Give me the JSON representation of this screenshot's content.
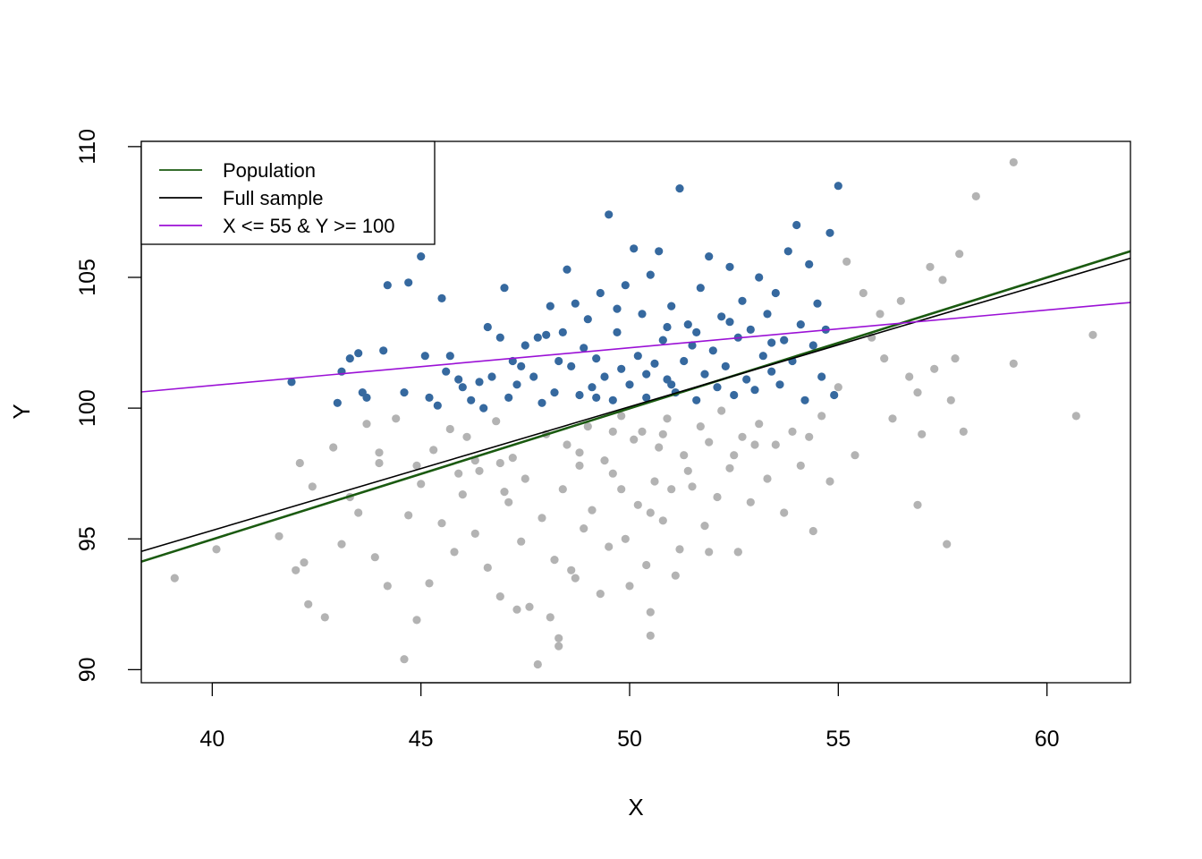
{
  "chart_data": {
    "type": "scatter",
    "title": "",
    "xlabel": "X",
    "ylabel": "Y",
    "xlim": [
      38.3,
      62.0
    ],
    "ylim": [
      89.5,
      110.2
    ],
    "x_ticks": [
      40,
      45,
      50,
      55,
      60
    ],
    "y_ticks": [
      90,
      95,
      100,
      105,
      110
    ],
    "x_tick_labels": [
      "40",
      "45",
      "50",
      "55",
      "60"
    ],
    "y_tick_labels": [
      "90",
      "95",
      "100",
      "105",
      "110"
    ],
    "grid": false,
    "legend_position": "top-left",
    "colors": {
      "selected_points": "#36699F",
      "other_points": "#B3B3B3",
      "population": "#1A5A10",
      "full_sample": "#000000",
      "subset": "#9B11D6"
    },
    "series": [
      {
        "name": "",
        "kind": "points",
        "color": "#36699F",
        "points": [
          [
            41.9,
            101.0
          ],
          [
            43.0,
            100.2
          ],
          [
            43.1,
            101.4
          ],
          [
            43.3,
            101.9
          ],
          [
            43.5,
            102.1
          ],
          [
            43.6,
            100.6
          ],
          [
            43.7,
            100.4
          ],
          [
            44.1,
            102.2
          ],
          [
            44.2,
            104.7
          ],
          [
            44.6,
            100.6
          ],
          [
            44.7,
            104.8
          ],
          [
            45.0,
            105.8
          ],
          [
            45.1,
            102.0
          ],
          [
            45.2,
            100.4
          ],
          [
            45.4,
            100.1
          ],
          [
            45.5,
            104.2
          ],
          [
            45.6,
            101.4
          ],
          [
            45.7,
            102.0
          ],
          [
            45.9,
            101.1
          ],
          [
            46.0,
            100.8
          ],
          [
            46.2,
            100.3
          ],
          [
            46.4,
            101.0
          ],
          [
            46.5,
            100.0
          ],
          [
            46.7,
            101.2
          ],
          [
            46.9,
            102.7
          ],
          [
            47.0,
            104.6
          ],
          [
            47.1,
            100.4
          ],
          [
            47.3,
            100.9
          ],
          [
            47.4,
            101.6
          ],
          [
            47.5,
            102.4
          ],
          [
            47.7,
            101.2
          ],
          [
            47.8,
            102.7
          ],
          [
            47.9,
            100.2
          ],
          [
            48.1,
            103.9
          ],
          [
            48.2,
            100.6
          ],
          [
            48.3,
            101.8
          ],
          [
            48.4,
            102.9
          ],
          [
            48.5,
            105.3
          ],
          [
            48.6,
            101.6
          ],
          [
            48.7,
            104.0
          ],
          [
            48.8,
            100.5
          ],
          [
            48.9,
            102.3
          ],
          [
            49.0,
            103.4
          ],
          [
            49.1,
            100.8
          ],
          [
            49.2,
            101.9
          ],
          [
            49.3,
            104.4
          ],
          [
            49.4,
            101.2
          ],
          [
            49.5,
            107.4
          ],
          [
            49.6,
            100.3
          ],
          [
            49.7,
            102.9
          ],
          [
            49.8,
            101.5
          ],
          [
            49.9,
            104.7
          ],
          [
            50.0,
            100.9
          ],
          [
            50.1,
            106.1
          ],
          [
            50.2,
            102.0
          ],
          [
            50.3,
            103.6
          ],
          [
            50.4,
            100.4
          ],
          [
            50.5,
            105.1
          ],
          [
            50.6,
            101.7
          ],
          [
            50.7,
            106.0
          ],
          [
            50.8,
            102.6
          ],
          [
            50.9,
            101.1
          ],
          [
            51.0,
            103.9
          ],
          [
            51.1,
            100.6
          ],
          [
            51.2,
            108.4
          ],
          [
            51.3,
            101.8
          ],
          [
            51.4,
            103.2
          ],
          [
            51.5,
            102.4
          ],
          [
            51.6,
            100.3
          ],
          [
            51.7,
            104.6
          ],
          [
            51.8,
            101.3
          ],
          [
            51.9,
            105.8
          ],
          [
            52.0,
            102.2
          ],
          [
            52.1,
            100.8
          ],
          [
            52.2,
            103.5
          ],
          [
            52.3,
            101.6
          ],
          [
            52.4,
            105.4
          ],
          [
            52.5,
            100.5
          ],
          [
            52.6,
            102.7
          ],
          [
            52.7,
            104.1
          ],
          [
            52.8,
            101.1
          ],
          [
            52.9,
            103.0
          ],
          [
            53.0,
            100.7
          ],
          [
            53.1,
            105.0
          ],
          [
            53.2,
            102.0
          ],
          [
            53.3,
            103.6
          ],
          [
            53.4,
            101.4
          ],
          [
            53.5,
            104.4
          ],
          [
            53.6,
            100.9
          ],
          [
            53.7,
            102.6
          ],
          [
            53.8,
            106.0
          ],
          [
            53.9,
            101.8
          ],
          [
            54.0,
            107.0
          ],
          [
            54.1,
            103.2
          ],
          [
            54.2,
            100.3
          ],
          [
            54.3,
            105.5
          ],
          [
            54.4,
            102.4
          ],
          [
            54.5,
            104.0
          ],
          [
            54.6,
            101.2
          ],
          [
            54.7,
            103.0
          ],
          [
            54.8,
            106.7
          ],
          [
            54.9,
            100.5
          ],
          [
            55.0,
            108.5
          ],
          [
            48.0,
            102.8
          ],
          [
            49.7,
            103.8
          ],
          [
            50.9,
            103.1
          ],
          [
            51.6,
            102.9
          ],
          [
            52.4,
            103.3
          ],
          [
            53.4,
            102.5
          ],
          [
            50.4,
            101.3
          ],
          [
            51.0,
            100.9
          ],
          [
            49.2,
            100.4
          ],
          [
            47.2,
            101.8
          ],
          [
            46.6,
            103.1
          ]
        ]
      },
      {
        "name": "",
        "kind": "points",
        "color": "#B3B3B3",
        "points": [
          [
            39.1,
            93.5
          ],
          [
            40.1,
            94.6
          ],
          [
            41.6,
            95.1
          ],
          [
            42.0,
            93.8
          ],
          [
            42.1,
            97.9
          ],
          [
            42.2,
            94.1
          ],
          [
            42.3,
            92.5
          ],
          [
            42.4,
            97.0
          ],
          [
            42.7,
            92.0
          ],
          [
            42.9,
            98.5
          ],
          [
            43.1,
            94.8
          ],
          [
            43.3,
            96.6
          ],
          [
            43.5,
            96.0
          ],
          [
            43.7,
            99.4
          ],
          [
            43.9,
            94.3
          ],
          [
            44.0,
            97.9
          ],
          [
            44.2,
            93.2
          ],
          [
            44.4,
            99.6
          ],
          [
            44.6,
            90.4
          ],
          [
            44.7,
            95.9
          ],
          [
            44.9,
            91.9
          ],
          [
            45.0,
            97.1
          ],
          [
            45.2,
            93.3
          ],
          [
            45.3,
            98.4
          ],
          [
            45.5,
            95.6
          ],
          [
            45.7,
            99.2
          ],
          [
            45.8,
            94.5
          ],
          [
            46.0,
            96.7
          ],
          [
            46.1,
            98.9
          ],
          [
            46.3,
            95.2
          ],
          [
            46.4,
            97.6
          ],
          [
            46.6,
            93.9
          ],
          [
            46.8,
            99.5
          ],
          [
            46.9,
            92.8
          ],
          [
            47.1,
            96.4
          ],
          [
            47.2,
            98.1
          ],
          [
            47.4,
            94.9
          ],
          [
            47.5,
            97.3
          ],
          [
            47.6,
            92.4
          ],
          [
            47.8,
            90.2
          ],
          [
            47.9,
            95.8
          ],
          [
            48.0,
            99.0
          ],
          [
            48.1,
            92.0
          ],
          [
            48.2,
            94.2
          ],
          [
            48.3,
            90.9
          ],
          [
            48.4,
            96.9
          ],
          [
            48.5,
            98.6
          ],
          [
            48.7,
            93.5
          ],
          [
            48.8,
            97.8
          ],
          [
            48.9,
            95.4
          ],
          [
            49.0,
            99.3
          ],
          [
            49.1,
            96.1
          ],
          [
            49.3,
            92.9
          ],
          [
            49.4,
            98.0
          ],
          [
            49.5,
            94.7
          ],
          [
            49.6,
            97.5
          ],
          [
            49.8,
            99.7
          ],
          [
            49.9,
            95.0
          ],
          [
            50.0,
            93.2
          ],
          [
            50.1,
            98.8
          ],
          [
            50.2,
            96.3
          ],
          [
            50.3,
            99.1
          ],
          [
            50.4,
            94.0
          ],
          [
            50.5,
            92.2
          ],
          [
            50.6,
            97.2
          ],
          [
            50.7,
            98.5
          ],
          [
            50.8,
            95.7
          ],
          [
            50.9,
            99.6
          ],
          [
            51.0,
            96.9
          ],
          [
            51.2,
            94.6
          ],
          [
            51.3,
            98.2
          ],
          [
            51.5,
            97.0
          ],
          [
            51.7,
            99.3
          ],
          [
            51.8,
            95.5
          ],
          [
            51.9,
            98.7
          ],
          [
            52.1,
            96.6
          ],
          [
            52.2,
            99.9
          ],
          [
            52.4,
            97.7
          ],
          [
            52.6,
            94.5
          ],
          [
            52.7,
            98.9
          ],
          [
            52.9,
            96.4
          ],
          [
            53.1,
            99.4
          ],
          [
            53.3,
            97.3
          ],
          [
            53.5,
            98.6
          ],
          [
            53.7,
            96.0
          ],
          [
            53.9,
            99.1
          ],
          [
            54.1,
            97.8
          ],
          [
            54.3,
            98.9
          ],
          [
            54.4,
            95.3
          ],
          [
            54.6,
            99.7
          ],
          [
            54.8,
            97.2
          ],
          [
            55.0,
            100.8
          ],
          [
            55.2,
            105.6
          ],
          [
            55.4,
            98.2
          ],
          [
            55.6,
            104.4
          ],
          [
            55.8,
            102.7
          ],
          [
            56.0,
            103.6
          ],
          [
            56.1,
            101.9
          ],
          [
            56.3,
            99.6
          ],
          [
            56.5,
            104.1
          ],
          [
            56.7,
            101.2
          ],
          [
            56.9,
            100.6
          ],
          [
            57.0,
            99.0
          ],
          [
            57.2,
            105.4
          ],
          [
            57.3,
            101.5
          ],
          [
            57.5,
            104.9
          ],
          [
            57.7,
            100.3
          ],
          [
            57.8,
            101.9
          ],
          [
            57.9,
            105.9
          ],
          [
            58.0,
            99.1
          ],
          [
            58.3,
            108.1
          ],
          [
            59.2,
            101.7
          ],
          [
            59.2,
            109.4
          ],
          [
            60.7,
            99.7
          ],
          [
            61.1,
            102.8
          ],
          [
            56.9,
            96.3
          ],
          [
            57.6,
            94.8
          ],
          [
            52.6,
            94.5
          ],
          [
            51.9,
            94.5
          ],
          [
            50.5,
            91.3
          ],
          [
            48.3,
            91.2
          ],
          [
            47.3,
            92.3
          ],
          [
            48.6,
            93.8
          ],
          [
            49.8,
            96.9
          ],
          [
            50.5,
            96.0
          ],
          [
            51.1,
            93.6
          ],
          [
            46.3,
            98.0
          ],
          [
            46.9,
            97.9
          ],
          [
            47.0,
            96.8
          ],
          [
            48.8,
            98.3
          ],
          [
            49.6,
            99.1
          ],
          [
            50.8,
            99.0
          ],
          [
            51.4,
            97.6
          ],
          [
            52.5,
            98.2
          ],
          [
            53.0,
            98.6
          ],
          [
            45.9,
            97.5
          ],
          [
            44.9,
            97.8
          ],
          [
            44.0,
            98.3
          ]
        ]
      },
      {
        "name": "Population",
        "kind": "line",
        "color": "#1A5A10",
        "points": [
          [
            38.3,
            94.13
          ],
          [
            62.0,
            106.0
          ]
        ]
      },
      {
        "name": "Full sample",
        "kind": "line",
        "color": "#000000",
        "points": [
          [
            38.3,
            94.52
          ],
          [
            62.0,
            105.73
          ]
        ]
      },
      {
        "name": "X <= 55 & Y >= 100",
        "kind": "line",
        "color": "#9B11D6",
        "points": [
          [
            38.3,
            100.62
          ],
          [
            62.0,
            104.04
          ]
        ]
      }
    ]
  }
}
